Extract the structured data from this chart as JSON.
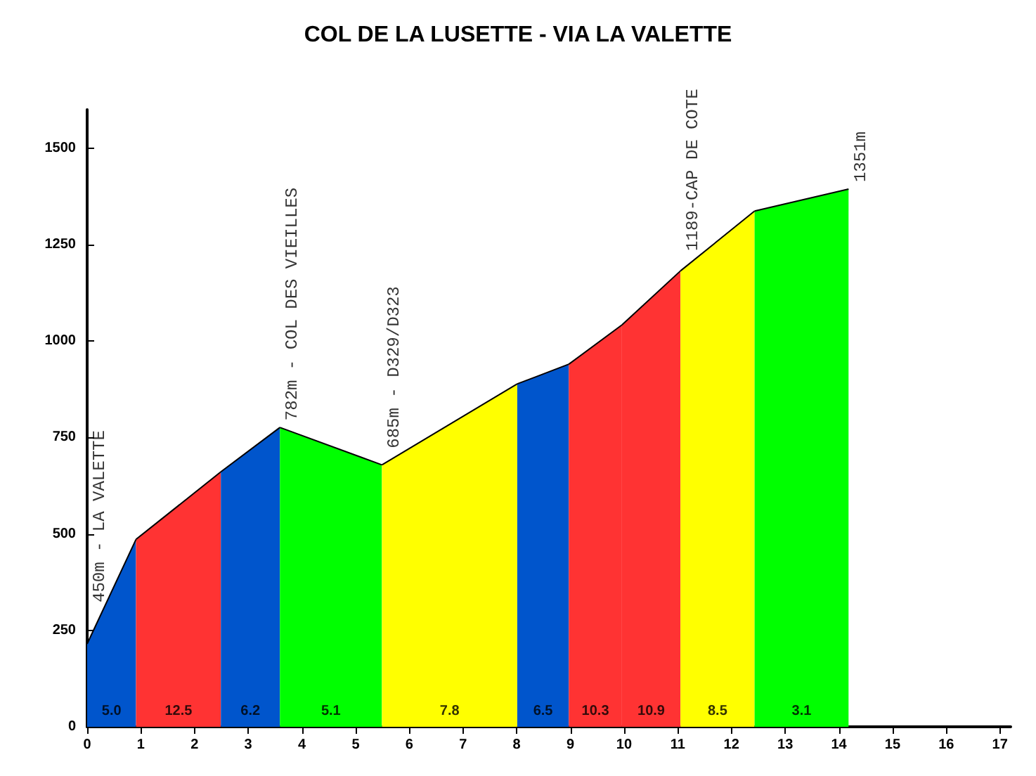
{
  "chart_data": {
    "type": "area",
    "title": "COL DE LA LUSETTE - VIA LA VALETTE",
    "series": [
      {
        "color": "#0055cc",
        "x": [
          0,
          0.91
        ],
        "values": [
          215,
          486
        ]
      },
      {
        "color": "#ff3333",
        "x": [
          0.91,
          2.49
        ],
        "values": [
          486,
          661
        ]
      },
      {
        "color": "#0055cc",
        "x": [
          2.49,
          3.59
        ],
        "values": [
          661,
          776
        ]
      },
      {
        "color": "#00ff00",
        "x": [
          3.59,
          5.49
        ],
        "values": [
          776,
          679
        ]
      },
      {
        "color": "#ffff00",
        "x": [
          5.49,
          8.01
        ],
        "values": [
          679,
          889
        ]
      },
      {
        "color": "#0055cc",
        "x": [
          8.01,
          8.97
        ],
        "values": [
          889,
          940
        ]
      },
      {
        "color": "#ff3333",
        "x": [
          8.97,
          9.96
        ],
        "values": [
          940,
          1042
        ]
      },
      {
        "color": "#ff3333",
        "x": [
          9.96,
          11.05
        ],
        "values": [
          1042,
          1182
        ]
      },
      {
        "color": "#ffff00",
        "x": [
          11.05,
          12.43
        ],
        "values": [
          1182,
          1337
        ]
      },
      {
        "color": "#00ff00",
        "x": [
          12.43,
          14.18
        ],
        "values": [
          1337,
          1394
        ]
      }
    ],
    "annotations": [
      {
        "text": "450m - LA VALETTE",
        "x": 0,
        "y": 215
      },
      {
        "text": "782m - COL DES VIEILLES",
        "x": 3.59,
        "y": 776
      },
      {
        "text": "685m - D329/D323",
        "x": 5.49,
        "y": 679
      },
      {
        "text": "1189-CAP DE COTE",
        "x": 11.05,
        "y": 1182
      },
      {
        "text": "1351m",
        "x": 14.18,
        "y": 1394
      },
      "5.0",
      "12.5",
      "6.2",
      "5.1",
      "7.8",
      "6.5",
      "10.3",
      "10.9",
      "8.5",
      "3.1"
    ],
    "xlim": [
      0,
      17.2
    ],
    "xticks": [
      0,
      1,
      2,
      3,
      4,
      5,
      6,
      7,
      8,
      9,
      10,
      11,
      12,
      13,
      14,
      15,
      16,
      17
    ],
    "ylim": [
      0,
      1600
    ],
    "yticks": [
      0,
      250,
      500,
      750,
      1000,
      1250,
      1500
    ],
    "grid": false
  }
}
